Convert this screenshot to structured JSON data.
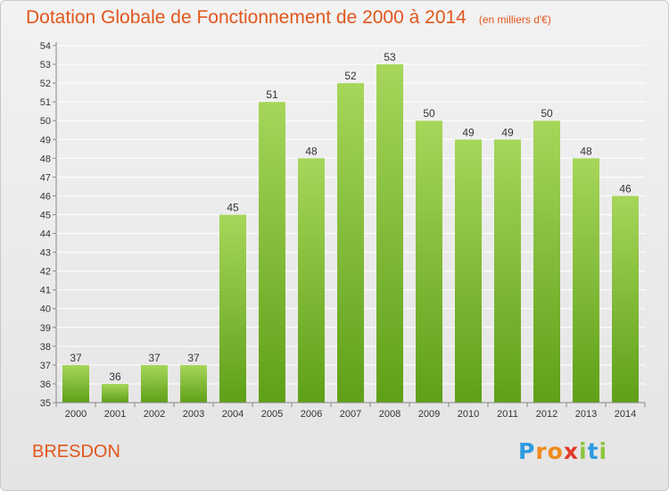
{
  "chart_data": {
    "type": "bar",
    "title": "Dotation Globale de Fonctionnement de 2000 à 2014",
    "unit_note": "(en milliers d'€)",
    "categories": [
      "2000",
      "2001",
      "2002",
      "2003",
      "2004",
      "2005",
      "2006",
      "2007",
      "2008",
      "2009",
      "2010",
      "2011",
      "2012",
      "2013",
      "2014"
    ],
    "values": [
      37,
      36,
      37,
      37,
      45,
      51,
      48,
      52,
      53,
      50,
      49,
      49,
      50,
      48,
      46
    ],
    "ylim": [
      35,
      54
    ],
    "yticks": [
      35,
      36,
      37,
      38,
      39,
      40,
      41,
      42,
      43,
      44,
      45,
      46,
      47,
      48,
      49,
      50,
      51,
      52,
      53,
      54
    ],
    "grid": true,
    "bar_color": "#7dc02c"
  },
  "footer": {
    "town": "BRESDON",
    "logo_letters": [
      "P",
      "r",
      "o",
      "x",
      "i",
      "t",
      "i"
    ],
    "logo_colors": [
      "#2e9be0",
      "#f08a1c",
      "#f08a1c",
      "#e23a2a",
      "#8cc63e",
      "#2e9be0",
      "#8cc63e"
    ]
  }
}
